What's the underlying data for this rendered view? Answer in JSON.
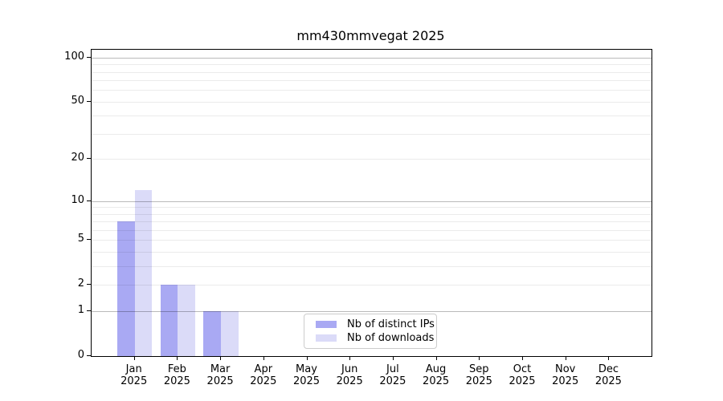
{
  "title": "mm430mmvegat 2025",
  "chart_data": {
    "type": "bar",
    "title": "mm430mmvegat 2025",
    "scale": "log10(1+y)",
    "grid": "on",
    "legend_position": "bottom-center",
    "categories": [
      "Jan",
      "Feb",
      "Mar",
      "Apr",
      "May",
      "Jun",
      "Jul",
      "Aug",
      "Sep",
      "Oct",
      "Nov",
      "Dec"
    ],
    "year_label": "2025",
    "y_ticks": [
      100,
      50,
      20,
      10,
      5,
      2,
      1,
      0
    ],
    "ylim": [
      0,
      113
    ],
    "grid_major_values": [
      1,
      10,
      100
    ],
    "grid_minor_values": [
      2,
      3,
      4,
      5,
      6,
      7,
      8,
      9,
      20,
      30,
      40,
      50,
      60,
      70,
      80,
      90
    ],
    "series": [
      {
        "name": "Nb of distinct IPs",
        "color": "#a9a9f3",
        "values": [
          7,
          2,
          1,
          0,
          0,
          0,
          0,
          0,
          0,
          0,
          0,
          0
        ]
      },
      {
        "name": "Nb of downloads",
        "color": "#dbdbf8",
        "values": [
          12,
          2,
          1,
          0,
          0,
          0,
          0,
          0,
          0,
          0,
          0,
          0
        ]
      }
    ],
    "colors": {
      "spine": "#000000",
      "grid_major": "#b8b8b8",
      "grid_minor": "#ebebeb"
    }
  }
}
